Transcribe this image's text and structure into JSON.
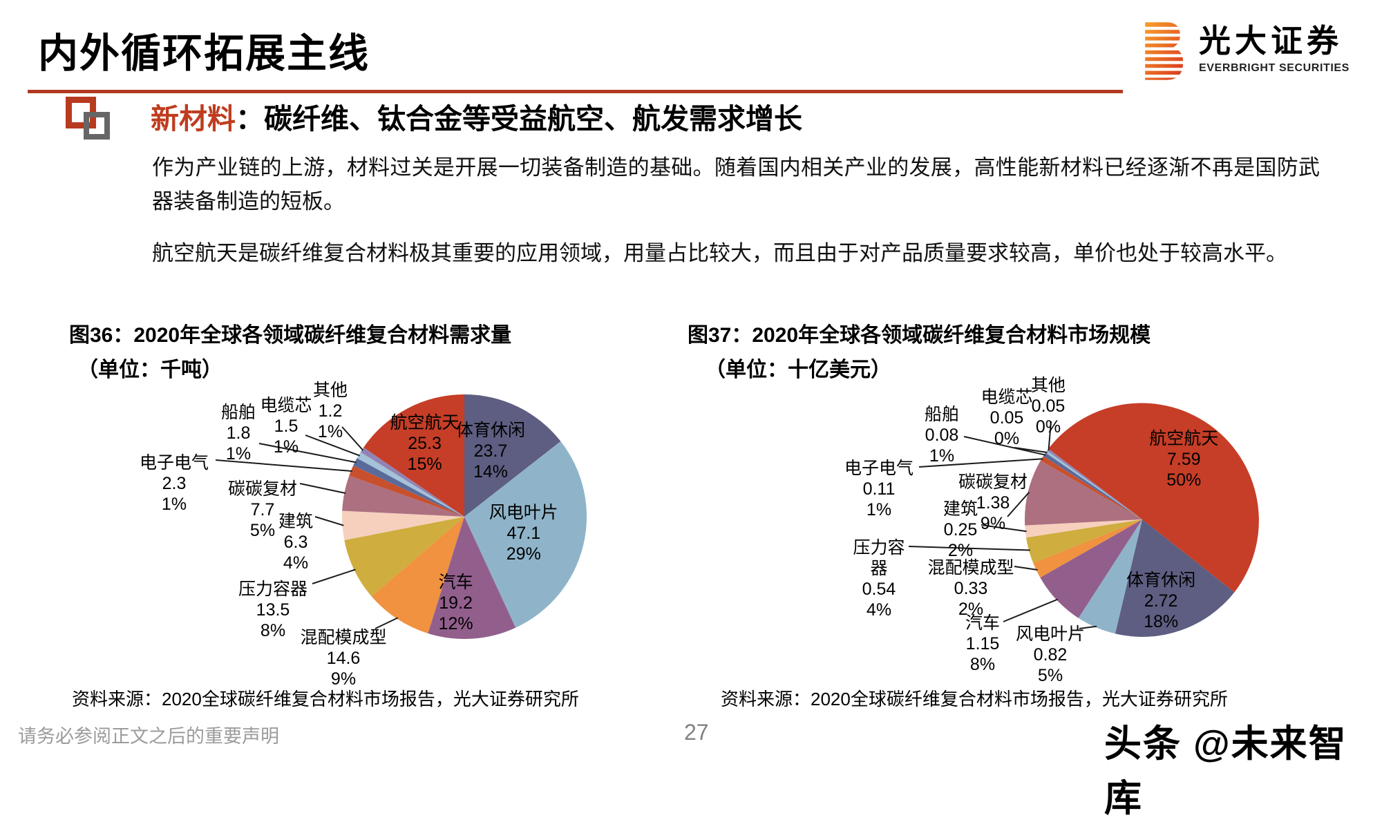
{
  "header": {
    "title": "内外循环拓展主线",
    "logo_cn": "光大证券",
    "logo_en": "EVERBRIGHT SECURITIES"
  },
  "section": {
    "keyword": "新材料",
    "heading_rest": "：碳纤维、钛合金等受益航空、航发需求增长",
    "paragraph1": "作为产业链的上游，材料过关是开展一切装备制造的基础。随着国内相关产业的发展，高性能新材料已经逐渐不再是国防武器装备制造的短板。",
    "paragraph2": "航空航天是碳纤维复合材料极其重要的应用领域，用量占比较大，而且由于对产品质量要求较高，单价也处于较高水平。"
  },
  "chart_data": [
    {
      "type": "pie",
      "title": "图36：2020年全球各领域碳纤维复合材料需求量",
      "unit": "（单位：千吨）",
      "source": "资料来源：2020全球碳纤维复合材料市场报告，光大证券研究所",
      "legend_position": "none",
      "slices": [
        {
          "label": "体育休闲",
          "value": "23.7",
          "pct": "14%",
          "color": "#5d5e81"
        },
        {
          "label": "风电叶片",
          "value": "47.1",
          "pct": "29%",
          "color": "#8fb4c9"
        },
        {
          "label": "汽车",
          "value": "19.2",
          "pct": "12%",
          "color": "#925f8d"
        },
        {
          "label": "混配模成型",
          "value": "14.6",
          "pct": "9%",
          "color": "#f0923f"
        },
        {
          "label": "压力容器",
          "value": "13.5",
          "pct": "8%",
          "color": "#cfad3e"
        },
        {
          "label": "建筑",
          "value": "6.3",
          "pct": "4%",
          "color": "#f6d0bd"
        },
        {
          "label": "碳碳复材",
          "value": "7.7",
          "pct": "5%",
          "color": "#ad7080"
        },
        {
          "label": "电子电气",
          "value": "2.3",
          "pct": "1%",
          "color": "#c8502c"
        },
        {
          "label": "船舶",
          "value": "1.8",
          "pct": "1%",
          "color": "#5a6b9a"
        },
        {
          "label": "电缆芯",
          "value": "1.5",
          "pct": "1%",
          "color": "#a4c2d8"
        },
        {
          "label": "其他",
          "value": "1.2",
          "pct": "1%",
          "color": "#9184b4"
        },
        {
          "label": "航空航天",
          "value": "25.3",
          "pct": "15%",
          "color": "#c63e27"
        }
      ]
    },
    {
      "type": "pie",
      "title": "图37：2020年全球各领域碳纤维复合材料市场规模",
      "unit": "（单位：十亿美元）",
      "source": "资料来源：2020全球碳纤维复合材料市场报告，光大证券研究所",
      "legend_position": "none",
      "slices": [
        {
          "label": "航空航天",
          "value": "7.59",
          "pct": "50%",
          "color": "#c63e27"
        },
        {
          "label": "体育休闲",
          "value": "2.72",
          "pct": "18%",
          "color": "#5d5e81"
        },
        {
          "label": "风电叶片",
          "value": "0.82",
          "pct": "5%",
          "color": "#8fb4c9"
        },
        {
          "label": "汽车",
          "value": "1.15",
          "pct": "8%",
          "color": "#925f8d"
        },
        {
          "label": "混配模成型",
          "value": "0.33",
          "pct": "2%",
          "color": "#f0923f"
        },
        {
          "label": "压力容器",
          "value": "0.54",
          "pct": "4%",
          "color": "#cfad3e"
        },
        {
          "label": "建筑",
          "value": "0.25",
          "pct": "2%",
          "color": "#f6d0bd"
        },
        {
          "label": "碳碳复材",
          "value": "1.38",
          "pct": "9%",
          "color": "#ad7080"
        },
        {
          "label": "电子电气",
          "value": "0.11",
          "pct": "1%",
          "color": "#c8502c"
        },
        {
          "label": "船舶",
          "value": "0.08",
          "pct": "1%",
          "color": "#5a6b9a"
        },
        {
          "label": "电缆芯",
          "value": "0.05",
          "pct": "0%",
          "color": "#a4c2d8"
        },
        {
          "label": "其他",
          "value": "0.05",
          "pct": "0%",
          "color": "#9184b4"
        }
      ]
    }
  ],
  "footer": {
    "disclaimer": "请务必参阅正文之后的重要声明",
    "page_number": "27",
    "watermark": "头条 @未来智库"
  }
}
